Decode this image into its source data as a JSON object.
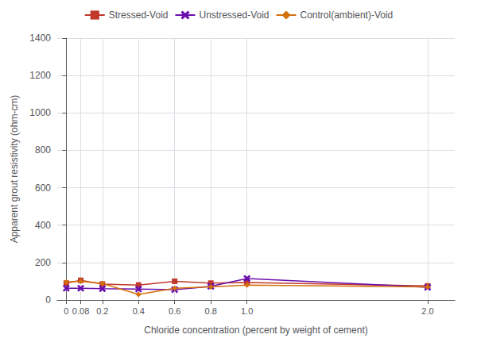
{
  "chart_data": {
    "type": "line",
    "x": [
      0,
      0.08,
      0.2,
      0.4,
      0.6,
      0.8,
      1.0,
      2.0
    ],
    "series": [
      {
        "name": "Stressed-Void",
        "color": "#c0392b",
        "marker": "square",
        "values": [
          90,
          105,
          85,
          80,
          100,
          90,
          93,
          75
        ]
      },
      {
        "name": "Unstressed-Void",
        "color": "#6a0dad",
        "marker": "x",
        "values": [
          63,
          63,
          60,
          58,
          55,
          73,
          115,
          68
        ]
      },
      {
        "name": "Control(ambient)-Void",
        "color": "#d4700a",
        "marker": "diamond",
        "values": [
          97,
          100,
          88,
          30,
          63,
          70,
          80,
          70
        ]
      }
    ],
    "xlabel": "Chloride concentration (percent by weight of cement)",
    "ylabel": "Apparent grout resistivity (ohm-cm)",
    "xlim": [
      -0.05,
      2.15
    ],
    "xticks": [
      0,
      0.08,
      0.2,
      0.4,
      0.6,
      0.8,
      {
        "value": 1.0,
        "label": "1.0"
      },
      {
        "value": 2.0,
        "label": "2.0"
      }
    ],
    "ylim": [
      0,
      1400
    ],
    "yticks": [
      0,
      200,
      400,
      600,
      800,
      1000,
      1200,
      1400
    ],
    "grid": true,
    "legend": "top"
  }
}
